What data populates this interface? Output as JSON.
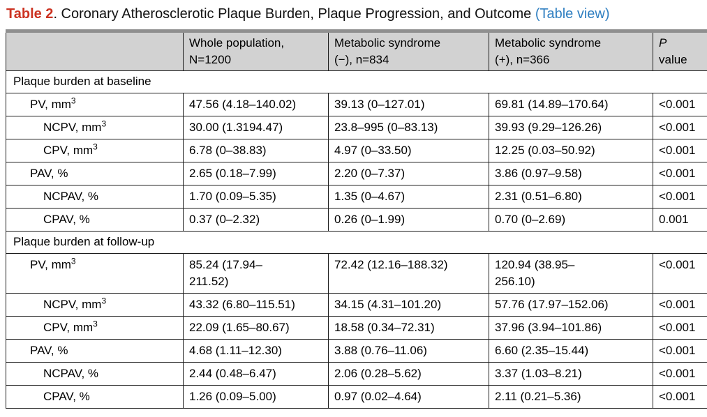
{
  "title": {
    "label": "Table 2",
    "rest": ". Coronary Atherosclerotic Plaque Burden, Plaque Progression, and Outcome ",
    "link": "(Table view)"
  },
  "table": {
    "header": {
      "col0": "",
      "col1": "Whole population,\nN=1200",
      "col2": "Metabolic syndrome\n(−), n=834",
      "col3": "Metabolic syndrome\n(+), n=366",
      "p_italic": "P",
      "p_rest": "value"
    },
    "highlight_color": "#c9efd5",
    "header_bg_color": "#d2d2d2",
    "title_accent_color": "#cc3322",
    "link_color": "#2f7fc1",
    "sections": [
      {
        "title": "Plaque burden at baseline",
        "rows": [
          {
            "label": "PV, mm",
            "sup": "3",
            "indent": 1,
            "highlight": false,
            "values": [
              "47.56 (4.18–140.02)",
              "39.13 (0–127.01)",
              "69.81 (14.89–170.64)",
              "<0.001"
            ]
          },
          {
            "label": "NCPV, mm",
            "sup": "3",
            "indent": 2,
            "highlight": true,
            "values": [
              "30.00 (1.3194.47)",
              "23.8–995 (0–83.13)",
              "39.93 (9.29–126.26)",
              "<0.001"
            ]
          },
          {
            "label": "CPV, mm",
            "sup": "3",
            "indent": 2,
            "highlight": false,
            "values": [
              "6.78 (0–38.83)",
              "4.97 (0–33.50)",
              "12.25 (0.03–50.92)",
              "<0.001"
            ]
          },
          {
            "label": "PAV, %",
            "sup": "",
            "indent": 1,
            "highlight": false,
            "values": [
              "2.65 (0.18–7.99)",
              "2.20 (0–7.37)",
              "3.86 (0.97–9.58)",
              "<0.001"
            ]
          },
          {
            "label": "NCPAV, %",
            "sup": "",
            "indent": 2,
            "highlight": false,
            "values": [
              "1.70 (0.09–5.35)",
              "1.35 (0–4.67)",
              "2.31 (0.51–6.80)",
              "<0.001"
            ]
          },
          {
            "label": "CPAV, %",
            "sup": "",
            "indent": 2,
            "highlight": false,
            "values": [
              "0.37 (0–2.32)",
              "0.26 (0–1.99)",
              "0.70 (0–2.69)",
              "0.001"
            ]
          }
        ]
      },
      {
        "title": "Plaque burden at follow-up",
        "rows": [
          {
            "label": "PV, mm",
            "sup": "3",
            "indent": 1,
            "highlight": false,
            "values": [
              "85.24 (17.94–\n211.52)",
              "72.42 (12.16–188.32)",
              "120.94 (38.95–\n256.10)",
              "<0.001"
            ]
          },
          {
            "label": "NCPV, mm",
            "sup": "3",
            "indent": 2,
            "highlight": true,
            "values": [
              "43.32 (6.80–115.51)",
              "34.15 (4.31–101.20)",
              "57.76 (17.97–152.06)",
              "<0.001"
            ]
          },
          {
            "label": "CPV, mm",
            "sup": "3",
            "indent": 2,
            "highlight": false,
            "values": [
              "22.09 (1.65–80.67)",
              "18.58 (0.34–72.31)",
              "37.96 (3.94–101.86)",
              "<0.001"
            ]
          },
          {
            "label": "PAV, %",
            "sup": "",
            "indent": 1,
            "highlight": false,
            "values": [
              "4.68 (1.11–12.30)",
              "3.88 (0.76–11.06)",
              "6.60 (2.35–15.44)",
              "<0.001"
            ]
          },
          {
            "label": "NCPAV, %",
            "sup": "",
            "indent": 2,
            "highlight": false,
            "values": [
              "2.44 (0.48–6.47)",
              "2.06 (0.28–5.62)",
              "3.37 (1.03–8.21)",
              "<0.001"
            ]
          },
          {
            "label": "CPAV, %",
            "sup": "",
            "indent": 2,
            "highlight": false,
            "values": [
              "1.26 (0.09–5.00)",
              "0.97 (0.02–4.64)",
              "2.11 (0.21–5.36)",
              "<0.001"
            ]
          }
        ]
      }
    ]
  }
}
